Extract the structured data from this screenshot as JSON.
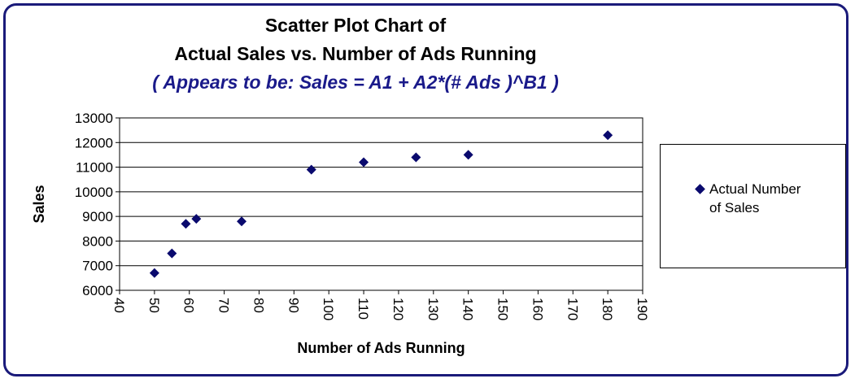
{
  "chart_data": {
    "type": "scatter",
    "title": "Scatter Plot Chart of",
    "title_line2": "Actual Sales vs. Number of Ads Running",
    "subtitle": "( Appears to be:  Sales = A1 + A2*(# Ads )^B1 )",
    "xlabel": "Number of Ads Running",
    "ylabel": "Sales",
    "xlim": [
      40,
      190
    ],
    "ylim": [
      6000,
      13000
    ],
    "x_ticks": [
      40,
      50,
      60,
      70,
      80,
      90,
      100,
      110,
      120,
      130,
      140,
      150,
      160,
      170,
      180,
      190
    ],
    "y_ticks": [
      6000,
      7000,
      8000,
      9000,
      10000,
      11000,
      12000,
      13000
    ],
    "grid": "horizontal",
    "legend_position": "right",
    "series": [
      {
        "name": "Actual Number of Sales",
        "marker": "diamond",
        "color": "#0a0a6e",
        "x": [
          50,
          55,
          59,
          62,
          75,
          95,
          110,
          125,
          140,
          180
        ],
        "y": [
          6700,
          7500,
          8700,
          8900,
          8800,
          10900,
          11200,
          11400,
          11500,
          12300
        ]
      }
    ]
  }
}
